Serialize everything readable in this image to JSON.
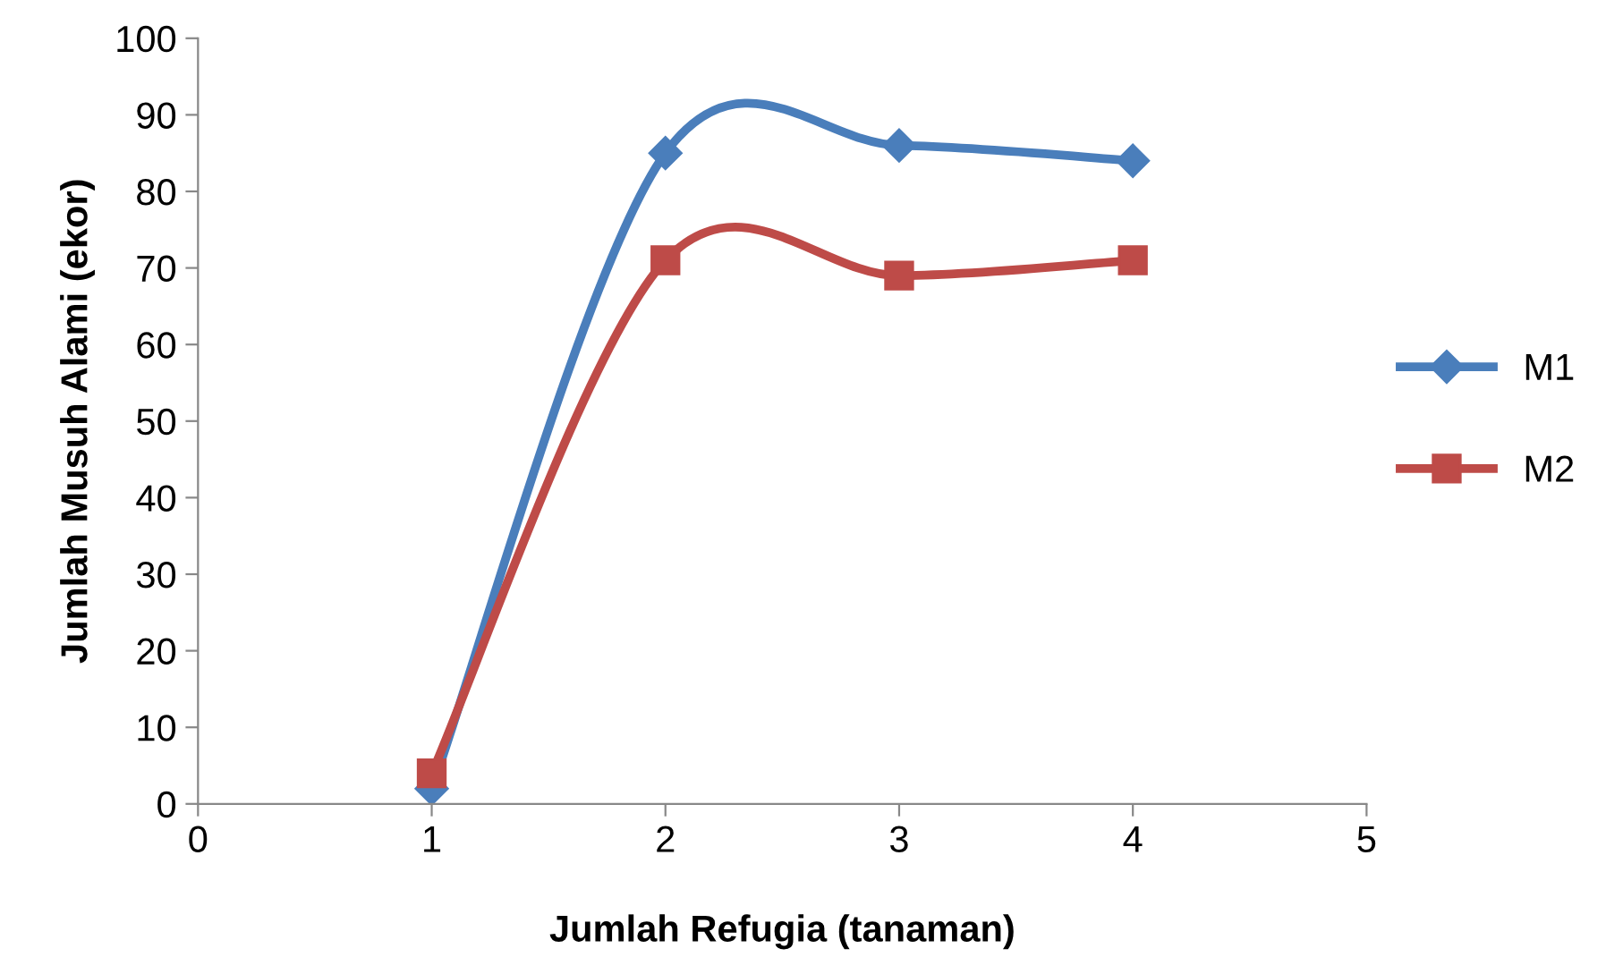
{
  "chart_data": {
    "type": "line",
    "xlabel": "Jumlah Refugia (tanaman)",
    "ylabel": "Jumlah Musuh Alami (ekor)",
    "x": [
      1,
      2,
      3,
      4
    ],
    "series": [
      {
        "name": "M1",
        "color": "#4a7ebb",
        "values": [
          2,
          85,
          86,
          84
        ],
        "marker": "diamond"
      },
      {
        "name": "M2",
        "color": "#be4b48",
        "values": [
          4,
          71,
          69,
          71
        ],
        "marker": "square"
      }
    ],
    "xlim": [
      0,
      5
    ],
    "xticks": [
      0,
      1,
      2,
      3,
      4,
      5
    ],
    "ylim": [
      0,
      100
    ],
    "yticks": [
      0,
      10,
      20,
      30,
      40,
      50,
      60,
      70,
      80,
      90,
      100
    ],
    "grid": false,
    "legend": "right",
    "line_style": "solid"
  }
}
